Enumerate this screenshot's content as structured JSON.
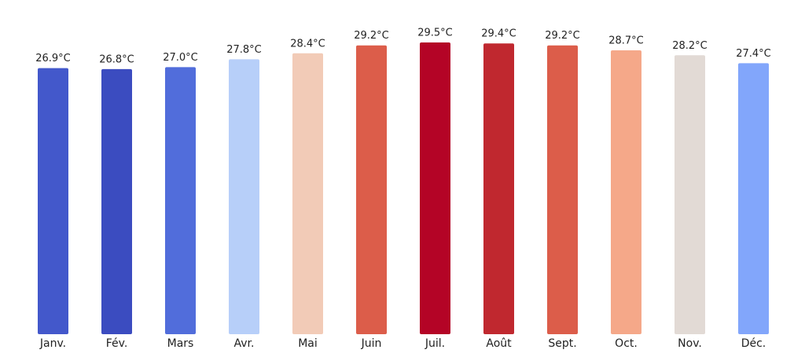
{
  "chart_data": {
    "type": "bar",
    "categories": [
      "Janv.",
      "Fév.",
      "Mars",
      "Avr.",
      "Mai",
      "Juin",
      "Juil.",
      "Août",
      "Sept.",
      "Oct.",
      "Nov.",
      "Déc."
    ],
    "values": [
      26.9,
      26.8,
      27.0,
      27.8,
      28.4,
      29.2,
      29.5,
      29.4,
      29.2,
      28.7,
      28.2,
      27.4
    ],
    "value_labels": [
      "26.9°C",
      "26.8°C",
      "27.0°C",
      "27.8°C",
      "28.4°C",
      "29.2°C",
      "29.5°C",
      "29.4°C",
      "29.2°C",
      "28.7°C",
      "28.2°C",
      "27.4°C"
    ],
    "colors": [
      "#4358cb",
      "#3b4cc0",
      "#516ddb",
      "#b7cff9",
      "#f2cbb7",
      "#dc5d4a",
      "#b40426",
      "#c0282f",
      "#dc5d4a",
      "#f5a889",
      "#e2dad5",
      "#82a6fb"
    ],
    "ylim": [
      0,
      32
    ]
  }
}
